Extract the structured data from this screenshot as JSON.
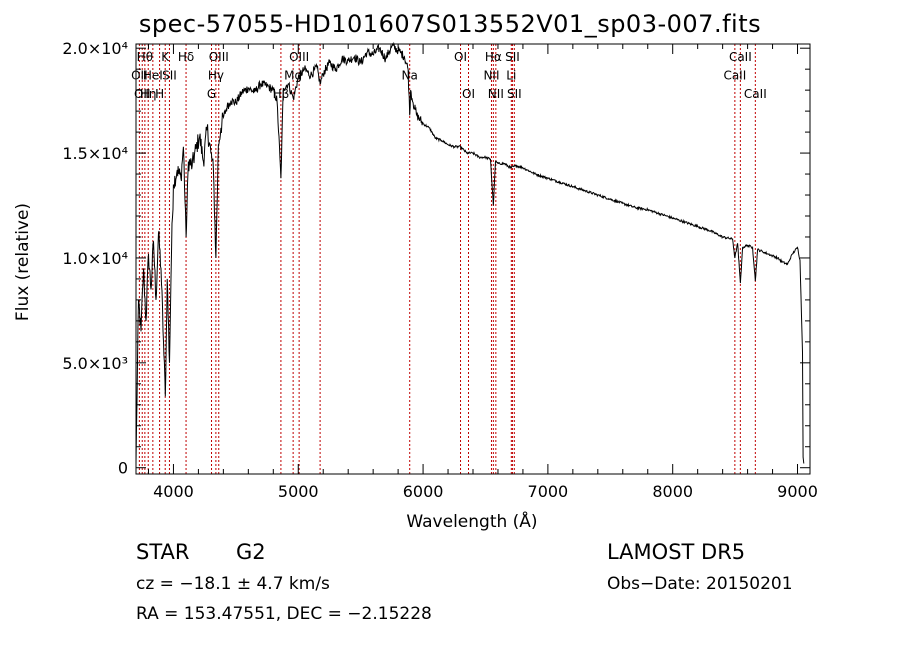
{
  "chart_data": {
    "type": "line",
    "title": "spec-57055-HD101607S013552V01_sp03-007.fits",
    "xlabel": "Wavelength (Å)",
    "ylabel": "Flux (relative)",
    "xlim": [
      3700,
      9100
    ],
    "ylim": [
      -300,
      20200
    ],
    "x_ticks": [
      4000,
      5000,
      6000,
      7000,
      8000,
      9000
    ],
    "y_ticks": [
      {
        "value": 0,
        "label": "0"
      },
      {
        "value": 5000,
        "label": "5.0×10³"
      },
      {
        "value": 10000,
        "label": "1.0×10⁴"
      },
      {
        "value": 15000,
        "label": "1.5×10⁴"
      },
      {
        "value": 20000,
        "label": "2.0×10⁴"
      }
    ],
    "series": [
      {
        "color": "#000000",
        "x": [
          3700,
          3720,
          3740,
          3760,
          3780,
          3800,
          3820,
          3840,
          3860,
          3880,
          3900,
          3920,
          3935,
          3950,
          3968,
          3985,
          4000,
          4030,
          4060,
          4080,
          4101,
          4120,
          4150,
          4180,
          4210,
          4240,
          4270,
          4300,
          4320,
          4340,
          4360,
          4380,
          4400,
          4430,
          4460,
          4500,
          4550,
          4600,
          4650,
          4700,
          4750,
          4800,
          4830,
          4861,
          4880,
          4920,
          4960,
          5000,
          5050,
          5100,
          5150,
          5175,
          5200,
          5250,
          5300,
          5350,
          5400,
          5450,
          5500,
          5550,
          5600,
          5650,
          5700,
          5750,
          5800,
          5850,
          5880,
          5893,
          5900,
          5920,
          5950,
          6000,
          6050,
          6100,
          6150,
          6200,
          6250,
          6300,
          6350,
          6400,
          6450,
          6500,
          6540,
          6563,
          6580,
          6600,
          6650,
          6700,
          6750,
          6800,
          6900,
          7000,
          7100,
          7200,
          7300,
          7400,
          7500,
          7600,
          7700,
          7800,
          7900,
          8000,
          8100,
          8200,
          8300,
          8400,
          8480,
          8498,
          8520,
          8542,
          8560,
          8600,
          8640,
          8662,
          8680,
          8720,
          8760,
          8800,
          8840,
          8880,
          8920,
          8960,
          9000,
          9020,
          9040,
          9045,
          9050
        ],
        "y": [
          200,
          8000,
          6500,
          9500,
          7000,
          10200,
          8500,
          10800,
          8000,
          11200,
          9500,
          6000,
          3400,
          9000,
          5000,
          10500,
          13500,
          14200,
          13800,
          15300,
          11000,
          14600,
          14400,
          15200,
          15800,
          14600,
          16200,
          15000,
          14200,
          10000,
          15400,
          16200,
          16700,
          17200,
          17500,
          17400,
          17900,
          18100,
          17900,
          18300,
          18200,
          18000,
          17500,
          13800,
          18100,
          18300,
          17600,
          18600,
          19000,
          18700,
          19100,
          18300,
          18800,
          19300,
          19000,
          19500,
          19400,
          19600,
          19300,
          19800,
          19700,
          20000,
          19500,
          20100,
          19900,
          19600,
          19000,
          16800,
          18000,
          17400,
          16800,
          16400,
          16200,
          15700,
          15600,
          15400,
          15300,
          15300,
          15000,
          15000,
          14800,
          14800,
          14700,
          12500,
          14600,
          14500,
          14500,
          14300,
          14400,
          14300,
          14000,
          13800,
          13600,
          13400,
          13200,
          13000,
          12800,
          12600,
          12400,
          12300,
          12100,
          11900,
          11700,
          11500,
          11300,
          11000,
          10900,
          10000,
          10700,
          8800,
          10500,
          10600,
          10500,
          8900,
          10400,
          10300,
          10200,
          10100,
          10000,
          9800,
          9700,
          10200,
          10500,
          9900,
          5500,
          500,
          200
        ]
      }
    ]
  },
  "lines": [
    {
      "wl": 3727,
      "label": "OII",
      "row": 1
    },
    {
      "wl": 3750,
      "label": "OII",
      "row": 2
    },
    {
      "wl": 3771,
      "label": "Hθ",
      "row": 0
    },
    {
      "wl": 3798,
      "label": "Hη",
      "row": 2
    },
    {
      "wl": 3835,
      "label": "HeI",
      "row": 1
    },
    {
      "wl": 3889,
      "label": "H",
      "row": 2
    },
    {
      "wl": 3934,
      "label": "K",
      "row": 0
    },
    {
      "wl": 3968,
      "label": "SII",
      "row": 1
    },
    {
      "wl": 4101,
      "label": "Hδ",
      "row": 0
    },
    {
      "wl": 4305,
      "label": "G",
      "row": 2
    },
    {
      "wl": 4340,
      "label": "Hγ",
      "row": 1
    },
    {
      "wl": 4363,
      "label": "OIII",
      "row": 0
    },
    {
      "wl": 4861,
      "label": "Hβ",
      "row": 2
    },
    {
      "wl": 4959,
      "label": "Mg",
      "row": 1
    },
    {
      "wl": 5007,
      "label": "OIII",
      "row": 0
    },
    {
      "wl": 5175,
      "label": "",
      "row": 0
    },
    {
      "wl": 5893,
      "label": "Na",
      "row": 1
    },
    {
      "wl": 6300,
      "label": "OI",
      "row": 0
    },
    {
      "wl": 6364,
      "label": "OI",
      "row": 2
    },
    {
      "wl": 6548,
      "label": "NII",
      "row": 1
    },
    {
      "wl": 6563,
      "label": "Hα",
      "row": 0
    },
    {
      "wl": 6583,
      "label": "NII",
      "row": 2
    },
    {
      "wl": 6707,
      "label": "Li",
      "row": 1
    },
    {
      "wl": 6716,
      "label": "SII",
      "row": 0
    },
    {
      "wl": 6731,
      "label": "SII",
      "row": 2
    },
    {
      "wl": 8498,
      "label": "CaII",
      "row": 1
    },
    {
      "wl": 8542,
      "label": "CaII",
      "row": 0
    },
    {
      "wl": 8662,
      "label": "CaII",
      "row": 2
    }
  ],
  "info": {
    "object": "STAR",
    "subclass": "G2",
    "cz": "cz = −18.1 ± 4.7 km/s",
    "coords": "RA = 153.47551, DEC =  −2.15228",
    "survey": "LAMOST  DR5",
    "obs_date": "Obs−Date: 20150201"
  }
}
